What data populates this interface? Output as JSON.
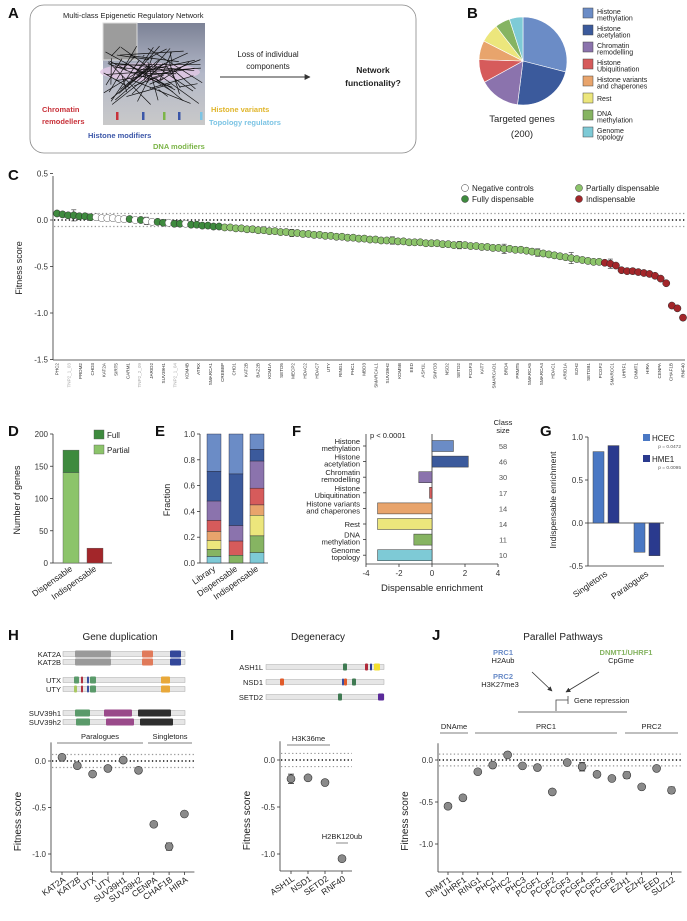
{
  "panel_labels": [
    "A",
    "B",
    "C",
    "D",
    "E",
    "F",
    "G",
    "H",
    "I",
    "J"
  ],
  "class_names": [
    "Histone methylation",
    "Histone acetylation",
    "Chromatin remodelling",
    "Histone Ubiquitination",
    "Histone variants and chaperones",
    "Rest",
    "DNA methylation",
    "Genome topology"
  ],
  "class_colors": [
    "#6b8cc6",
    "#3b5a9c",
    "#8b73ad",
    "#d65b5b",
    "#e8a46c",
    "#ece67c",
    "#86b462",
    "#7ecad6"
  ],
  "panel_a": {
    "title": "Multi-class Epigenetic Regulatory Network",
    "arrow_text_1": "Loss of individual",
    "arrow_text_2": "components",
    "outcome_1": "Network",
    "outcome_2": "functionality?",
    "labels": {
      "chromatin_1": "Chromatin",
      "chromatin_2": "remodellers",
      "histone_modifiers": "Histone modifiers",
      "dna_modifiers": "DNA modifiers",
      "histone_variants": "Histone variants",
      "topology": "Topology regulators"
    },
    "label_colors": {
      "chromatin": "#c8323a",
      "histone": "#3b56a8",
      "dna": "#7cb548",
      "variants": "#e0b52a",
      "topology": "#7cc4e4"
    }
  },
  "chart_data": [
    {
      "panel": "B",
      "type": "pie",
      "title": "Targeted genes",
      "subtitle": "(200)",
      "legend": [
        "Histone methylation",
        "Histone acetylation",
        "Chromatin remodelling",
        "Histone Ubiquitination",
        "Histone variants and chaperones",
        "Rest",
        "DNA methylation",
        "Genome topology"
      ],
      "legend_lines": [
        [
          "Histone",
          "methylation"
        ],
        [
          "Histone",
          "acetylation"
        ],
        [
          "Chromatin",
          "remodelling"
        ],
        [
          "Histone",
          "Ubiquitination"
        ],
        [
          "Histone variants",
          "and chaperones"
        ],
        [
          "Rest"
        ],
        [
          "DNA",
          "methylation"
        ],
        [
          "Genome",
          "topology"
        ]
      ],
      "values": [
        58,
        46,
        30,
        17,
        14,
        14,
        11,
        10
      ]
    },
    {
      "panel": "C",
      "type": "scatter",
      "ylabel": "Fitness score",
      "ylim": [
        -1.5,
        0.5
      ],
      "yticks": [
        "0.5",
        "0.0",
        "-0.5",
        "-1.0",
        "-1.5"
      ],
      "ytick_values": [
        0.5,
        0.0,
        -0.5,
        -1.0,
        -1.5
      ],
      "threshold": 0.07,
      "legend": {
        "n": "Negative controls",
        "f": "Fully dispensable",
        "p": "Partially dispensable",
        "i": "Indispensable"
      },
      "colors": {
        "n": "#ffffff",
        "f": "#3e8a3e",
        "p": "#8cc46a",
        "i": "#a3262a"
      },
      "classes": "fffffffnnnnnnfnfnnffnffnffffffppppppppppppppppppppppppppppppppppppppppppppppppppppppppppppppppppppiiiiiiiiiiiiiiii",
      "values": [
        0.07,
        0.06,
        0.05,
        0.05,
        0.04,
        0.04,
        0.03,
        0.03,
        0.02,
        0.02,
        0.02,
        0.01,
        0.01,
        0.01,
        0.0,
        0.0,
        -0.01,
        -0.02,
        -0.02,
        -0.03,
        -0.03,
        -0.04,
        -0.04,
        -0.04,
        -0.05,
        -0.05,
        -0.06,
        -0.06,
        -0.07,
        -0.07,
        -0.08,
        -0.08,
        -0.09,
        -0.09,
        -0.1,
        -0.1,
        -0.11,
        -0.11,
        -0.12,
        -0.12,
        -0.13,
        -0.13,
        -0.14,
        -0.14,
        -0.15,
        -0.15,
        -0.16,
        -0.16,
        -0.17,
        -0.17,
        -0.18,
        -0.18,
        -0.19,
        -0.19,
        -0.2,
        -0.2,
        -0.21,
        -0.21,
        -0.22,
        -0.22,
        -0.22,
        -0.23,
        -0.23,
        -0.24,
        -0.24,
        -0.24,
        -0.25,
        -0.25,
        -0.25,
        -0.26,
        -0.26,
        -0.27,
        -0.27,
        -0.27,
        -0.28,
        -0.28,
        -0.29,
        -0.29,
        -0.3,
        -0.3,
        -0.31,
        -0.31,
        -0.32,
        -0.32,
        -0.33,
        -0.34,
        -0.35,
        -0.36,
        -0.37,
        -0.38,
        -0.39,
        -0.4,
        -0.41,
        -0.42,
        -0.43,
        -0.44,
        -0.45,
        -0.45,
        -0.46,
        -0.47,
        -0.49,
        -0.54,
        -0.55,
        -0.55,
        -0.56,
        -0.57,
        -0.58,
        -0.6,
        -0.63,
        -0.68,
        -0.92,
        -0.95,
        -1.05
      ],
      "gene_labels": [
        "PHC2",
        "TNP2_1_03",
        "PRDM2",
        "CHD3",
        "KAT2A",
        "SIRT5",
        "CARM1",
        "TNP2_2_09",
        "JARID2",
        "SUV39H1",
        "TNP2_1_04",
        "KDM4B",
        "ATRX",
        "SMARCA1",
        "CREBBP",
        "CHD1",
        "KAT2B",
        "BAZ2B",
        "KDM1A",
        "SETD5",
        "MECP2",
        "HDAC2",
        "HDAC7",
        "UTY",
        "RING1",
        "PHC1",
        "MBD3",
        "SMARCAL1",
        "SUV39H2",
        "KDM5B",
        "EED",
        "ASH1L",
        "SMYD3",
        "NSD2",
        "SETD2",
        "PCGF3",
        "KAT7",
        "SMARCAD1",
        "BRD4",
        "PRMT5",
        "SMARCA5",
        "SMARCA4",
        "HDAC1",
        "ARID1A",
        "EZH2",
        "SETDB1",
        "PCGF2",
        "SMARCC1",
        "UHRF1",
        "DNMT1",
        "HIRA",
        "CENPA",
        "CHAF1B",
        "RNF40"
      ]
    },
    {
      "panel": "D",
      "type": "bar",
      "categories": [
        "Dispensable",
        "Indispensable"
      ],
      "series": [
        {
          "name": "Partial",
          "values": [
            140,
            0
          ],
          "color": "#8cc46a"
        },
        {
          "name": "Full",
          "values": [
            35,
            0
          ],
          "color": "#3e8a3e"
        },
        {
          "name": "Indispensable",
          "values": [
            0,
            23
          ],
          "color": "#a3262a"
        }
      ],
      "legend": [
        "Full",
        "Partial"
      ],
      "ylabel": "Number of genes",
      "ylim": [
        0,
        200
      ],
      "yticks": [
        "0",
        "50",
        "100",
        "150",
        "200"
      ],
      "ytick_values": [
        0,
        50,
        100,
        150,
        200
      ]
    },
    {
      "panel": "E",
      "type": "bar",
      "categories": [
        "Library",
        "Dispensable",
        "Indispensable"
      ],
      "ylabel": "Fraction",
      "ylim": [
        0,
        1
      ],
      "yticks": [
        "0.0",
        "0.2",
        "0.4",
        "0.6",
        "0.8",
        "1.0"
      ],
      "ytick_values": [
        0,
        0.2,
        0.4,
        0.6,
        0.8,
        1.0
      ],
      "fractions": [
        [
          0.29,
          0.23,
          0.15,
          0.085,
          0.07,
          0.07,
          0.055,
          0.05
        ],
        [
          0.31,
          0.4,
          0.12,
          0.11,
          0.0,
          0.0,
          0.06,
          0.0
        ],
        [
          0.12,
          0.09,
          0.21,
          0.13,
          0.08,
          0.16,
          0.13,
          0.08
        ]
      ]
    },
    {
      "panel": "F",
      "type": "bar",
      "orientation": "horizontal",
      "xlabel": "Dispensable enrichment",
      "xlim": [
        -4,
        4
      ],
      "xticks": [
        "-4",
        "-2",
        "0",
        "2",
        "4"
      ],
      "xtick_values": [
        -4,
        -2,
        0,
        2,
        4
      ],
      "annotation": "p < 0.0001",
      "class_size_header_1": "Class",
      "class_size_header_2": "size",
      "class_sizes": [
        "58",
        "46",
        "30",
        "17",
        "14",
        "14",
        "11",
        "10"
      ],
      "values": [
        1.3,
        2.2,
        -0.8,
        -0.15,
        -3.3,
        -3.3,
        -1.1,
        -3.3
      ]
    },
    {
      "panel": "G",
      "type": "bar",
      "categories": [
        "Singletons",
        "Paralogues"
      ],
      "series": [
        {
          "name": "HCEC",
          "p": "p = 0.0472",
          "values": [
            0.83,
            -0.34
          ],
          "color": "#4a78c4"
        },
        {
          "name": "HME1",
          "p": "p = 0.0095",
          "values": [
            0.9,
            -0.38
          ],
          "color": "#2a3a8e"
        }
      ],
      "ylabel": "Indispensable enrichment",
      "ylim": [
        -0.5,
        1.0
      ],
      "yticks": [
        "-0.5",
        "0.0",
        "0.5",
        "1.0"
      ],
      "ytick_values": [
        -0.5,
        0,
        0.5,
        1.0
      ]
    },
    {
      "panel": "H",
      "type": "scatter",
      "title": "Gene duplication",
      "domain_genes": [
        "KAT2A",
        "KAT2B",
        "UTX",
        "UTY",
        "SUV39h1",
        "SUV39h2"
      ],
      "groups": [
        "Paralogues",
        "Singletons"
      ],
      "categories": [
        "KAT2A",
        "KAT2B",
        "UTX",
        "UTY",
        "SUV39H1",
        "SUV39H2",
        "CENPA",
        "CHAF1B",
        "HIRA"
      ],
      "values": [
        0.04,
        -0.05,
        -0.14,
        -0.08,
        0.01,
        -0.1,
        -0.68,
        -0.92,
        -0.57
      ],
      "errors": [
        0,
        0,
        0,
        0,
        0,
        0,
        0,
        0.04,
        0
      ],
      "ylabel": "Fitness score",
      "ylim": [
        -1.2,
        0.2
      ],
      "yticks": [
        "0.0",
        "-0.5",
        "-1.0"
      ],
      "ytick_values": [
        0,
        -0.5,
        -1.0
      ]
    },
    {
      "panel": "I",
      "type": "scatter",
      "title": "Degeneracy",
      "domain_genes": [
        "ASH1L",
        "NSD1",
        "SETD2"
      ],
      "groups": [
        "H3K36me",
        "H2BK120ub"
      ],
      "categories": [
        "ASH1L",
        "NSD1",
        "SETD2",
        "RNF40"
      ],
      "values": [
        -0.2,
        -0.19,
        -0.24,
        -1.05
      ],
      "errors": [
        0.05,
        0,
        0,
        0.01
      ],
      "ylabel": "Fitness score",
      "ylim": [
        -1.2,
        0.2
      ],
      "yticks": [
        "0.0",
        "-0.5",
        "-1.0"
      ],
      "ytick_values": [
        0,
        -0.5,
        -1.0
      ]
    },
    {
      "panel": "J",
      "type": "scatter",
      "title": "Parallel Pathways",
      "diagram": {
        "prc1": "PRC1",
        "h2aub": "H2Aub",
        "prc2": "PRC2",
        "h3k27": "H3K27me3",
        "dnmt": "DNMT1/UHRF1",
        "cpg": "CpGme",
        "repression": "Gene repression"
      },
      "groups": [
        "DNAme",
        "PRC1",
        "PRC2"
      ],
      "categories": [
        "DNMT1",
        "UHRF1",
        "RING1",
        "PHC1",
        "PHC2",
        "PHC3",
        "PCGF1",
        "PCGF2",
        "PCGF3",
        "PCGF4",
        "PCGF5",
        "PCGF6",
        "EZH1",
        "EZH2",
        "EED",
        "SUZ12"
      ],
      "values": [
        -0.55,
        -0.45,
        -0.14,
        -0.06,
        0.06,
        -0.07,
        -0.09,
        -0.38,
        -0.03,
        -0.08,
        -0.17,
        -0.22,
        -0.18,
        -0.32,
        -0.1,
        -0.36
      ],
      "errors": [
        0,
        0,
        0,
        0,
        0,
        0,
        0,
        0,
        0,
        0.05,
        0,
        0,
        0.04,
        0.03,
        0.02,
        0.04
      ],
      "ylabel": "Fitness score",
      "ylim": [
        -1.2,
        0.2
      ],
      "yticks": [
        "0.0",
        "-0.5",
        "-1.0"
      ],
      "ytick_values": [
        0,
        -0.5,
        -1.0
      ]
    }
  ]
}
